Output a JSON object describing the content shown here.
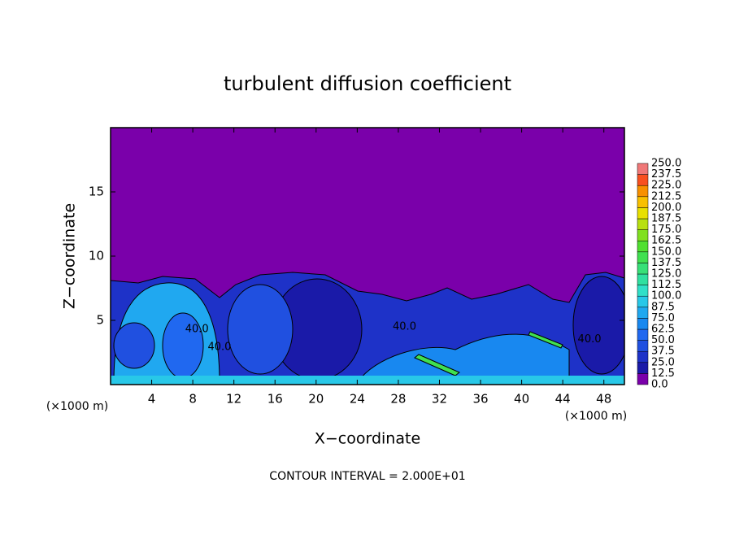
{
  "chart_data": {
    "type": "contour",
    "title": "turbulent diffusion coefficient",
    "xlabel": "X−coordinate",
    "ylabel": "Z−coordinate",
    "x_unit_left": "(×1000 m)",
    "x_unit_right": "(×1000 m)",
    "note": "CONTOUR INTERVAL = 2.000E+01",
    "xlim": [
      0,
      50
    ],
    "xticks": [
      4,
      8,
      12,
      16,
      20,
      24,
      28,
      32,
      36,
      40,
      44,
      48
    ],
    "ylim": [
      0,
      20
    ],
    "yticks": [
      5,
      10,
      15
    ],
    "contour_labels": [
      {
        "text": "40.0",
        "x": 28.6,
        "y": 4.5
      },
      {
        "text": "40.0",
        "x": 8.4,
        "y": 4.3
      },
      {
        "text": "40.0",
        "x": 10.6,
        "y": 2.9
      },
      {
        "text": "40.0",
        "x": 46.6,
        "y": 3.5
      }
    ],
    "colorbar": {
      "levels": [
        {
          "value": 0,
          "label": "0.0"
        },
        {
          "value": 12.5,
          "label": "12.5"
        },
        {
          "value": 25,
          "label": "25.0"
        },
        {
          "value": 37.5,
          "label": "37.5"
        },
        {
          "value": 50,
          "label": "50.0"
        },
        {
          "value": 62.5,
          "label": "62.5"
        },
        {
          "value": 75,
          "label": "75.0"
        },
        {
          "value": 87.5,
          "label": "87.5"
        },
        {
          "value": 100,
          "label": "100.0"
        },
        {
          "value": 112.5,
          "label": "112.5"
        },
        {
          "value": 125,
          "label": "125.0"
        },
        {
          "value": 137.5,
          "label": "137.5"
        },
        {
          "value": 150,
          "label": "150.0"
        },
        {
          "value": 162.5,
          "label": "162.5"
        },
        {
          "value": 175,
          "label": "175.0"
        },
        {
          "value": 187.5,
          "label": "187.5"
        },
        {
          "value": 200,
          "label": "200.0"
        },
        {
          "value": 212.5,
          "label": "212.5"
        },
        {
          "value": 225,
          "label": "225.0"
        },
        {
          "value": 237.5,
          "label": "237.5"
        },
        {
          "value": 250,
          "label": "250.0"
        }
      ],
      "colors": [
        "#7a00aa",
        "#1a1aa8",
        "#1e32c8",
        "#2050e0",
        "#2068f0",
        "#1888f0",
        "#20a8f0",
        "#28c8e8",
        "#30e0c8",
        "#30e0a0",
        "#38e078",
        "#40e050",
        "#50e030",
        "#80e020",
        "#b8e010",
        "#e8e000",
        "#f8c000",
        "#f89000",
        "#f85020",
        "#f07878"
      ]
    }
  }
}
